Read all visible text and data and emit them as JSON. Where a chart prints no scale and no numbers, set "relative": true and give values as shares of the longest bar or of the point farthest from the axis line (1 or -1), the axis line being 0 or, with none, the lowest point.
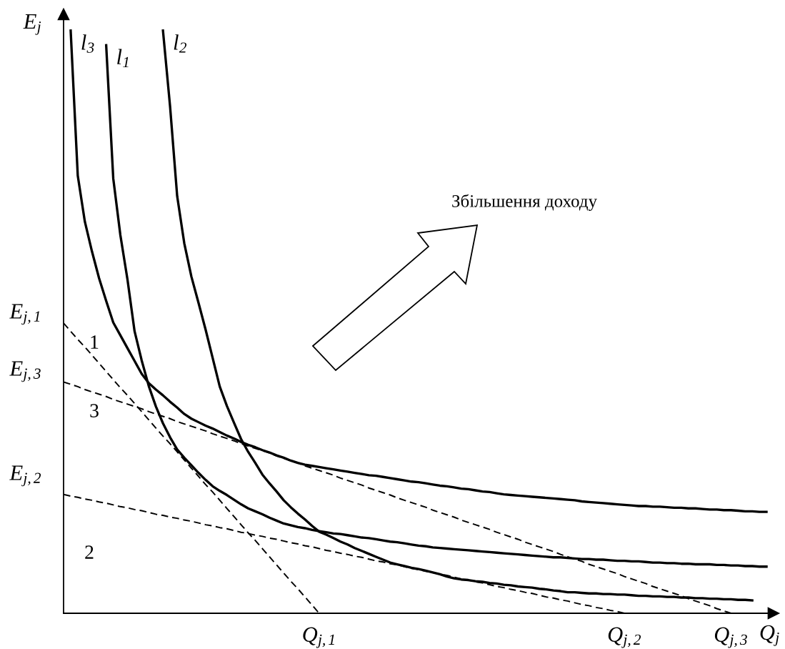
{
  "chart_data": {
    "type": "line",
    "relative": true,
    "xlabel": "Q$_{j}$",
    "ylabel": "E$_{j}$",
    "marker": "none",
    "categories": [
      null,
      null,
      null,
      null,
      null,
      null,
      null,
      null,
      null,
      null,
      null,
      null,
      null,
      null,
      null,
      null,
      null,
      null,
      null,
      null,
      null,
      null,
      null,
      null,
      null,
      null,
      null,
      null,
      null,
      null,
      null,
      null,
      null,
      null,
      null,
      null,
      "Q$_{j,1}$",
      null,
      null,
      null,
      null,
      null,
      null,
      null,
      null,
      null,
      null,
      null,
      null,
      null,
      null,
      null,
      null,
      null,
      null,
      null,
      null,
      null,
      null,
      null,
      null,
      null,
      null,
      null,
      null,
      null,
      null,
      null,
      null,
      null,
      null,
      null,
      null,
      null,
      null,
      null,
      null,
      null,
      null,
      "Q$_{j,2}$",
      null,
      null,
      null,
      null,
      null,
      null,
      null,
      null,
      null,
      null,
      null,
      null,
      null,
      null,
      "Q$_{j,3}$",
      null,
      null,
      null,
      null,
      null,
      null
    ],
    "series": [
      {
        "name": "l$_{3}$",
        "color": "#000000",
        "line_style": "solid",
        "values": [
          null,
          1.0,
          0.751,
          0.672,
          0.621,
          0.575,
          0.536,
          0.499,
          0.477,
          0.455,
          0.433,
          0.411,
          0.395,
          0.384,
          0.374,
          0.363,
          0.353,
          0.342,
          0.334,
          0.328,
          0.322,
          0.317,
          0.311,
          0.305,
          0.3,
          0.294,
          0.289,
          0.285,
          0.28,
          0.276,
          0.271,
          0.267,
          0.262,
          0.258,
          0.255,
          0.253,
          0.251,
          0.249,
          0.247,
          0.245,
          0.243,
          0.241,
          0.239,
          0.237,
          0.236,
          0.234,
          0.232,
          0.23,
          0.228,
          0.226,
          0.225,
          0.223,
          0.221,
          0.219,
          0.218,
          0.216,
          0.214,
          0.213,
          0.211,
          0.209,
          0.208,
          0.206,
          0.204,
          0.203,
          0.202,
          0.201,
          0.2,
          0.199,
          0.198,
          0.197,
          0.196,
          0.195,
          0.194,
          0.192,
          0.191,
          0.19,
          0.189,
          0.188,
          0.187,
          0.186,
          0.185,
          0.184,
          0.184,
          0.183,
          0.183,
          0.182,
          0.181,
          0.181,
          0.18,
          0.18,
          0.179,
          0.178,
          0.178,
          0.177,
          0.177,
          0.176,
          0.175,
          0.175,
          0.174,
          0.174,
          null
        ]
      },
      {
        "name": "l$_{1}$",
        "color": "#000000",
        "line_style": "solid",
        "values": [
          null,
          null,
          null,
          null,
          null,
          null,
          0.975,
          0.746,
          0.649,
          0.573,
          0.484,
          0.434,
          0.39,
          0.355,
          0.326,
          0.302,
          0.281,
          0.267,
          0.254,
          0.241,
          0.229,
          0.218,
          0.21,
          0.203,
          0.195,
          0.187,
          0.18,
          0.175,
          0.17,
          0.164,
          0.159,
          0.154,
          0.151,
          0.148,
          0.146,
          0.143,
          0.141,
          0.139,
          0.137,
          0.136,
          0.134,
          0.132,
          0.13,
          0.129,
          0.127,
          0.125,
          0.123,
          0.122,
          0.12,
          0.118,
          0.116,
          0.115,
          0.113,
          0.112,
          0.111,
          0.11,
          0.109,
          0.108,
          0.107,
          0.106,
          0.105,
          0.104,
          0.103,
          0.102,
          0.101,
          0.1,
          0.099,
          0.098,
          0.097,
          0.096,
          0.096,
          0.095,
          0.094,
          0.093,
          0.093,
          0.092,
          0.092,
          0.091,
          0.09,
          0.09,
          0.089,
          0.089,
          0.088,
          0.087,
          0.087,
          0.086,
          0.086,
          0.085,
          0.085,
          0.084,
          0.084,
          0.084,
          0.083,
          0.083,
          0.082,
          0.082,
          0.081,
          0.081,
          0.08,
          0.08,
          null
        ]
      },
      {
        "name": "l$_{2}$",
        "color": "#000000",
        "line_style": "solid",
        "values": [
          null,
          null,
          null,
          null,
          null,
          null,
          null,
          null,
          null,
          null,
          null,
          null,
          null,
          null,
          1.0,
          0.87,
          0.716,
          0.635,
          0.578,
          0.533,
          0.487,
          0.438,
          0.389,
          0.356,
          0.327,
          0.299,
          0.277,
          0.258,
          0.238,
          0.223,
          0.209,
          0.194,
          0.182,
          0.171,
          0.161,
          0.15,
          0.14,
          0.135,
          0.129,
          0.123,
          0.118,
          0.112,
          0.107,
          0.102,
          0.097,
          0.092,
          0.087,
          0.084,
          0.081,
          0.078,
          0.076,
          0.073,
          0.07,
          0.067,
          0.063,
          0.06,
          0.058,
          0.057,
          0.055,
          0.054,
          0.052,
          0.051,
          0.049,
          0.048,
          0.046,
          0.045,
          0.044,
          0.042,
          0.041,
          0.039,
          0.038,
          0.036,
          0.036,
          0.035,
          0.034,
          0.034,
          0.033,
          0.033,
          0.032,
          0.032,
          0.031,
          0.03,
          0.03,
          0.029,
          0.029,
          0.028,
          0.028,
          0.027,
          0.027,
          0.026,
          0.026,
          0.025,
          0.025,
          0.024,
          0.024,
          0.023,
          0.023,
          0.022,
          null,
          null,
          null
        ]
      },
      {
        "color": "#000000",
        "line_style": "dashed",
        "values": [
          0.498,
          0.484,
          0.47,
          0.457,
          0.443,
          0.429,
          0.415,
          0.401,
          0.387,
          0.374,
          0.36,
          0.346,
          0.332,
          0.318,
          0.304,
          0.291,
          0.277,
          0.263,
          0.249,
          0.235,
          0.221,
          0.208,
          0.194,
          0.18,
          0.166,
          0.152,
          0.138,
          0.125,
          0.111,
          0.097,
          0.083,
          0.069,
          0.055,
          0.042,
          0.028,
          0.014,
          0.0,
          null,
          null,
          null,
          null,
          null,
          null,
          null,
          null,
          null,
          null,
          null,
          null,
          null,
          null,
          null,
          null,
          null,
          null,
          null,
          null,
          null,
          null,
          null,
          null,
          null,
          null,
          null,
          null,
          null,
          null,
          null,
          null,
          null,
          null,
          null,
          null,
          null,
          null,
          null,
          null,
          null,
          null,
          null,
          null,
          null,
          null,
          null,
          null,
          null,
          null,
          null,
          null,
          null,
          null,
          null,
          null,
          null,
          null,
          null,
          null,
          null,
          null,
          null,
          null
        ]
      },
      {
        "color": "#000000",
        "line_style": "dashed",
        "values": [
          0.397,
          0.393,
          0.389,
          0.384,
          0.38,
          0.376,
          0.372,
          0.367,
          0.363,
          0.359,
          0.355,
          0.351,
          0.346,
          0.342,
          0.338,
          0.334,
          0.329,
          0.325,
          0.321,
          0.317,
          0.313,
          0.308,
          0.304,
          0.3,
          0.296,
          0.291,
          0.287,
          0.283,
          0.279,
          0.275,
          0.27,
          0.266,
          0.262,
          0.258,
          0.253,
          0.249,
          0.245,
          0.241,
          0.237,
          0.232,
          0.228,
          0.224,
          0.22,
          0.215,
          0.211,
          0.207,
          0.203,
          0.198,
          0.194,
          0.19,
          0.186,
          0.182,
          0.177,
          0.173,
          0.169,
          0.165,
          0.16,
          0.156,
          0.152,
          0.148,
          0.144,
          0.139,
          0.135,
          0.131,
          0.127,
          0.122,
          0.118,
          0.114,
          0.11,
          0.106,
          0.101,
          0.097,
          0.093,
          0.089,
          0.084,
          0.08,
          0.076,
          0.072,
          0.068,
          0.063,
          0.059,
          0.055,
          0.051,
          0.046,
          0.042,
          0.038,
          0.034,
          0.03,
          0.025,
          0.021,
          0.017,
          0.013,
          0.008,
          0.004,
          0.0,
          null,
          null,
          null,
          null,
          null,
          null
        ]
      },
      {
        "color": "#000000",
        "line_style": "dashed",
        "values": [
          0.204,
          0.201,
          0.199,
          0.196,
          0.194,
          0.191,
          0.189,
          0.186,
          0.183,
          0.181,
          0.178,
          0.176,
          0.173,
          0.17,
          0.168,
          0.165,
          0.163,
          0.16,
          0.158,
          0.155,
          0.152,
          0.15,
          0.147,
          0.145,
          0.142,
          0.139,
          0.137,
          0.134,
          0.132,
          0.129,
          0.127,
          0.124,
          0.121,
          0.119,
          0.116,
          0.114,
          0.111,
          0.108,
          0.106,
          0.103,
          0.101,
          0.098,
          0.096,
          0.093,
          0.09,
          0.088,
          0.085,
          0.083,
          0.08,
          0.077,
          0.075,
          0.072,
          0.07,
          0.067,
          0.065,
          0.062,
          0.059,
          0.057,
          0.054,
          0.052,
          0.049,
          0.046,
          0.044,
          0.041,
          0.039,
          0.036,
          0.034,
          0.031,
          0.028,
          0.026,
          0.023,
          0.021,
          0.018,
          0.015,
          0.013,
          0.01,
          0.008,
          0.005,
          0.003,
          0.0,
          null,
          null,
          null,
          null,
          null,
          null,
          null,
          null,
          null,
          null,
          null,
          null,
          null,
          null,
          null,
          null,
          null,
          null,
          null,
          null,
          null
        ]
      }
    ],
    "annotations": [
      "E$_{j,1}$",
      "E$_{j,3}$",
      "E$_{j,2}$",
      "1",
      "3",
      "2",
      "Збільшення доходу"
    ]
  }
}
